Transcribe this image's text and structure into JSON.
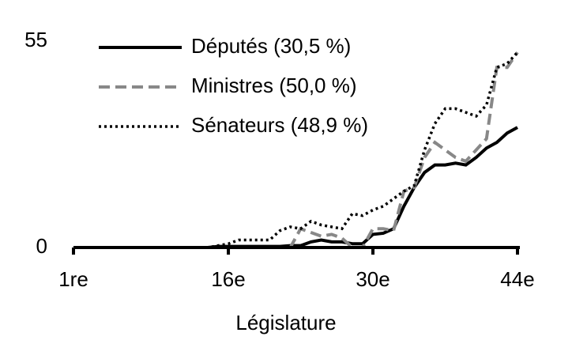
{
  "chart_data": {
    "type": "line",
    "xlabel": "Législature",
    "x": [
      1,
      2,
      3,
      4,
      5,
      6,
      7,
      8,
      9,
      10,
      11,
      12,
      13,
      14,
      15,
      16,
      17,
      18,
      19,
      20,
      21,
      22,
      23,
      24,
      25,
      26,
      27,
      28,
      29,
      30,
      31,
      32,
      33,
      34,
      35,
      36,
      37,
      38,
      39,
      40,
      41,
      42,
      43,
      44
    ],
    "xlim": [
      1,
      44
    ],
    "xticks": [
      {
        "value": 1,
        "label": "1re"
      },
      {
        "value": 16,
        "label": "16e"
      },
      {
        "value": 30,
        "label": "30e"
      },
      {
        "value": 44,
        "label": "44e"
      }
    ],
    "ylim": [
      0,
      55
    ],
    "yticks": [
      0,
      55
    ],
    "legend": "top-left",
    "series": [
      {
        "name": "Députés (30,5 %)",
        "color": "#000000",
        "dash": "solid",
        "values": [
          0,
          0,
          0,
          0,
          0,
          0,
          0,
          0,
          0,
          0,
          0,
          0,
          0,
          0,
          0.3,
          0.3,
          0.3,
          0.3,
          0.3,
          0.3,
          0.3,
          0.5,
          0.5,
          1.5,
          2,
          1.5,
          1.5,
          1,
          1,
          3.5,
          3.8,
          5,
          11,
          16,
          20,
          22,
          22,
          22.5,
          22,
          24,
          26.5,
          28,
          30.5,
          32
        ]
      },
      {
        "name": "Ministres (50,0 %)",
        "color": "#888888",
        "dash": "dashed",
        "values": [
          0,
          0,
          0,
          0,
          0,
          0,
          0,
          0,
          0,
          0,
          0,
          0,
          0,
          0,
          0,
          0,
          0,
          0,
          0,
          0,
          0,
          0,
          5,
          4,
          3,
          3.5,
          2.5,
          0,
          0,
          5,
          5,
          4.5,
          15,
          16,
          24,
          28,
          26,
          24,
          23,
          26,
          29,
          48,
          48,
          52
        ]
      },
      {
        "name": "Sénateurs (48,9 %)",
        "color": "#000000",
        "dash": "dotted",
        "values": [
          0,
          0,
          0,
          0,
          0,
          0,
          0,
          0,
          0,
          0,
          0,
          0,
          0,
          0,
          0.5,
          1,
          2,
          2,
          2,
          2,
          4.5,
          5.5,
          5,
          7,
          6,
          5.5,
          5,
          9,
          8.5,
          10,
          11,
          13,
          15,
          16.5,
          26,
          33,
          37,
          37,
          36,
          35,
          38,
          48,
          49,
          52
        ]
      }
    ]
  }
}
